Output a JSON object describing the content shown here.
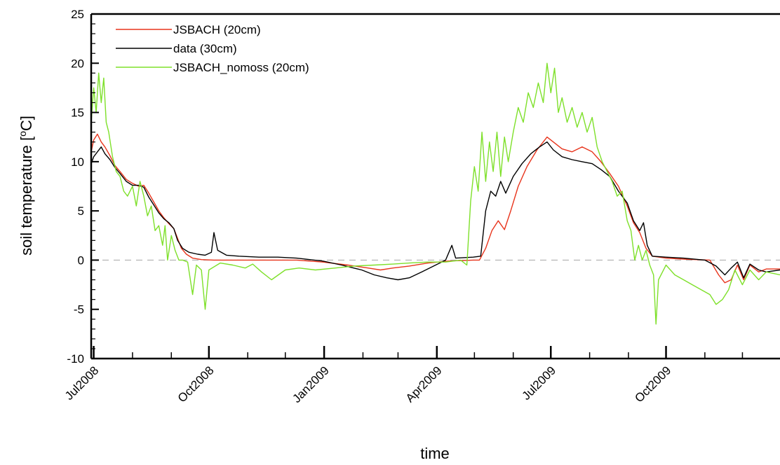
{
  "chart_data": {
    "type": "line",
    "title": "",
    "xlabel": "time",
    "ylabel": "soil temperature [°C]",
    "ylabel_parts": {
      "main": "soil temperature [",
      "super": "o",
      "unit": "C]"
    },
    "ylim": [
      -10,
      25
    ],
    "yticks": [
      -10,
      -5,
      0,
      5,
      10,
      15,
      20,
      25
    ],
    "ytick_labels": [
      "-10",
      "-5",
      "0",
      "5",
      "10",
      "15",
      "20",
      "25"
    ],
    "xlim": [
      "2008-06-29",
      "2009-12-31"
    ],
    "xticks": [
      {
        "date": "2008-07-01",
        "label": "Jul2008"
      },
      {
        "date": "2008-10-01",
        "label": "Oct2008"
      },
      {
        "date": "2009-01-01",
        "label": "Jan2009"
      },
      {
        "date": "2009-04-01",
        "label": "Apr2009"
      },
      {
        "date": "2009-07-01",
        "label": "Jul2009"
      },
      {
        "date": "2009-10-01",
        "label": "Oct2009"
      }
    ],
    "zero_line": {
      "y": 0,
      "style": "dashed",
      "color": "#b0b0b0"
    },
    "legend_position": "top-left",
    "series": [
      {
        "name": "JSBACH (20cm)",
        "color": "#e8341c",
        "points": [
          [
            "2008-06-29",
            11.0
          ],
          [
            "2008-07-01",
            12.2
          ],
          [
            "2008-07-04",
            12.8
          ],
          [
            "2008-07-07",
            12.0
          ],
          [
            "2008-07-10",
            11.5
          ],
          [
            "2008-07-14",
            10.6
          ],
          [
            "2008-07-18",
            9.6
          ],
          [
            "2008-07-22",
            9.0
          ],
          [
            "2008-07-27",
            8.2
          ],
          [
            "2008-08-01",
            7.8
          ],
          [
            "2008-08-06",
            7.5
          ],
          [
            "2008-08-10",
            7.6
          ],
          [
            "2008-08-14",
            6.8
          ],
          [
            "2008-08-18",
            5.9
          ],
          [
            "2008-08-22",
            5.0
          ],
          [
            "2008-08-26",
            4.3
          ],
          [
            "2008-08-30",
            3.7
          ],
          [
            "2008-09-03",
            3.2
          ],
          [
            "2008-09-06",
            2.2
          ],
          [
            "2008-09-09",
            1.2
          ],
          [
            "2008-09-13",
            0.6
          ],
          [
            "2008-09-18",
            0.2
          ],
          [
            "2008-09-25",
            0.05
          ],
          [
            "2008-10-05",
            0.0
          ],
          [
            "2008-10-25",
            0.0
          ],
          [
            "2008-11-15",
            0.0
          ],
          [
            "2008-12-10",
            0.0
          ],
          [
            "2008-12-31",
            -0.2
          ],
          [
            "2009-01-20",
            -0.5
          ],
          [
            "2009-02-05",
            -0.8
          ],
          [
            "2009-02-15",
            -1.0
          ],
          [
            "2009-02-25",
            -0.8
          ],
          [
            "2009-03-10",
            -0.6
          ],
          [
            "2009-03-25",
            -0.3
          ],
          [
            "2009-04-10",
            -0.1
          ],
          [
            "2009-04-30",
            0.0
          ],
          [
            "2009-05-05",
            0.0
          ],
          [
            "2009-05-10",
            1.2
          ],
          [
            "2009-05-15",
            3.0
          ],
          [
            "2009-05-20",
            4.0
          ],
          [
            "2009-05-25",
            3.1
          ],
          [
            "2009-05-30",
            5.0
          ],
          [
            "2009-06-05",
            7.5
          ],
          [
            "2009-06-12",
            9.5
          ],
          [
            "2009-06-20",
            11.2
          ],
          [
            "2009-06-28",
            12.5
          ],
          [
            "2009-07-03",
            12.0
          ],
          [
            "2009-07-10",
            11.3
          ],
          [
            "2009-07-18",
            11.0
          ],
          [
            "2009-07-26",
            11.5
          ],
          [
            "2009-08-03",
            11.0
          ],
          [
            "2009-08-10",
            10.0
          ],
          [
            "2009-08-17",
            8.8
          ],
          [
            "2009-08-24",
            7.5
          ],
          [
            "2009-08-31",
            5.5
          ],
          [
            "2009-09-05",
            3.8
          ],
          [
            "2009-09-10",
            2.8
          ],
          [
            "2009-09-15",
            1.2
          ],
          [
            "2009-09-20",
            0.4
          ],
          [
            "2009-10-01",
            0.2
          ],
          [
            "2009-10-15",
            0.1
          ],
          [
            "2009-11-05",
            0.0
          ],
          [
            "2009-11-12",
            -1.5
          ],
          [
            "2009-11-17",
            -2.3
          ],
          [
            "2009-11-22",
            -2.0
          ],
          [
            "2009-11-27",
            -0.5
          ],
          [
            "2009-12-02",
            -2.0
          ],
          [
            "2009-12-07",
            -0.5
          ],
          [
            "2009-12-14",
            -1.2
          ],
          [
            "2009-12-20",
            -0.9
          ],
          [
            "2009-12-31",
            -0.9
          ]
        ]
      },
      {
        "name": "data (30cm)",
        "color": "#000000",
        "points": [
          [
            "2008-06-29",
            9.8
          ],
          [
            "2008-07-01",
            10.5
          ],
          [
            "2008-07-04",
            11.0
          ],
          [
            "2008-07-07",
            11.5
          ],
          [
            "2008-07-10",
            10.8
          ],
          [
            "2008-07-14",
            10.2
          ],
          [
            "2008-07-18",
            9.4
          ],
          [
            "2008-07-22",
            8.8
          ],
          [
            "2008-07-27",
            8.0
          ],
          [
            "2008-08-01",
            7.6
          ],
          [
            "2008-08-06",
            7.6
          ],
          [
            "2008-08-10",
            7.4
          ],
          [
            "2008-08-14",
            6.4
          ],
          [
            "2008-08-18",
            5.6
          ],
          [
            "2008-08-22",
            4.8
          ],
          [
            "2008-08-26",
            4.2
          ],
          [
            "2008-08-30",
            3.8
          ],
          [
            "2008-09-03",
            3.2
          ],
          [
            "2008-09-06",
            2.0
          ],
          [
            "2008-09-10",
            1.2
          ],
          [
            "2008-09-15",
            0.8
          ],
          [
            "2008-09-22",
            0.6
          ],
          [
            "2008-09-28",
            0.5
          ],
          [
            "2008-10-03",
            0.8
          ],
          [
            "2008-10-05",
            2.8
          ],
          [
            "2008-10-08",
            1.0
          ],
          [
            "2008-10-15",
            0.5
          ],
          [
            "2008-10-25",
            0.4
          ],
          [
            "2008-11-10",
            0.3
          ],
          [
            "2008-11-25",
            0.3
          ],
          [
            "2008-12-10",
            0.2
          ],
          [
            "2008-12-31",
            -0.1
          ],
          [
            "2009-01-15",
            -0.5
          ],
          [
            "2009-01-31",
            -1.0
          ],
          [
            "2009-02-10",
            -1.5
          ],
          [
            "2009-02-20",
            -1.8
          ],
          [
            "2009-03-01",
            -2.0
          ],
          [
            "2009-03-10",
            -1.8
          ],
          [
            "2009-03-20",
            -1.2
          ],
          [
            "2009-03-31",
            -0.5
          ],
          [
            "2009-04-08",
            0.0
          ],
          [
            "2009-04-13",
            1.5
          ],
          [
            "2009-04-16",
            0.2
          ],
          [
            "2009-04-30",
            0.3
          ],
          [
            "2009-05-06",
            0.4
          ],
          [
            "2009-05-10",
            5.0
          ],
          [
            "2009-05-14",
            7.0
          ],
          [
            "2009-05-18",
            6.5
          ],
          [
            "2009-05-22",
            8.0
          ],
          [
            "2009-05-26",
            6.8
          ],
          [
            "2009-06-01",
            8.5
          ],
          [
            "2009-06-08",
            9.8
          ],
          [
            "2009-06-15",
            10.8
          ],
          [
            "2009-06-22",
            11.5
          ],
          [
            "2009-06-28",
            12.0
          ],
          [
            "2009-07-03",
            11.2
          ],
          [
            "2009-07-10",
            10.5
          ],
          [
            "2009-07-18",
            10.2
          ],
          [
            "2009-07-26",
            10.0
          ],
          [
            "2009-08-03",
            9.8
          ],
          [
            "2009-08-10",
            9.2
          ],
          [
            "2009-08-17",
            8.5
          ],
          [
            "2009-08-24",
            7.0
          ],
          [
            "2009-08-31",
            5.8
          ],
          [
            "2009-09-05",
            4.0
          ],
          [
            "2009-09-10",
            3.0
          ],
          [
            "2009-09-13",
            3.8
          ],
          [
            "2009-09-16",
            1.5
          ],
          [
            "2009-09-20",
            0.4
          ],
          [
            "2009-10-01",
            0.3
          ],
          [
            "2009-10-15",
            0.2
          ],
          [
            "2009-11-01",
            0.0
          ],
          [
            "2009-11-10",
            -0.6
          ],
          [
            "2009-11-17",
            -1.5
          ],
          [
            "2009-11-22",
            -0.8
          ],
          [
            "2009-11-27",
            -0.2
          ],
          [
            "2009-12-02",
            -1.8
          ],
          [
            "2009-12-07",
            -0.4
          ],
          [
            "2009-12-14",
            -1.0
          ],
          [
            "2009-12-20",
            -1.2
          ],
          [
            "2009-12-31",
            -1.0
          ]
        ]
      },
      {
        "name": "JSBACH_nomoss (20cm)",
        "color": "#7ee02a",
        "points": [
          [
            "2008-06-29",
            14.0
          ],
          [
            "2008-07-01",
            17.5
          ],
          [
            "2008-07-03",
            15.0
          ],
          [
            "2008-07-05",
            19.0
          ],
          [
            "2008-07-07",
            16.0
          ],
          [
            "2008-07-09",
            18.5
          ],
          [
            "2008-07-11",
            14.0
          ],
          [
            "2008-07-13",
            13.0
          ],
          [
            "2008-07-16",
            10.5
          ],
          [
            "2008-07-19",
            9.0
          ],
          [
            "2008-07-22",
            8.5
          ],
          [
            "2008-07-25",
            7.0
          ],
          [
            "2008-07-28",
            6.5
          ],
          [
            "2008-08-01",
            7.5
          ],
          [
            "2008-08-04",
            5.5
          ],
          [
            "2008-08-07",
            8.0
          ],
          [
            "2008-08-10",
            6.5
          ],
          [
            "2008-08-13",
            4.5
          ],
          [
            "2008-08-16",
            5.5
          ],
          [
            "2008-08-19",
            3.0
          ],
          [
            "2008-08-22",
            3.5
          ],
          [
            "2008-08-25",
            1.5
          ],
          [
            "2008-08-27",
            3.5
          ],
          [
            "2008-08-29",
            0.0
          ],
          [
            "2008-09-01",
            2.5
          ],
          [
            "2008-09-04",
            1.0
          ],
          [
            "2008-09-07",
            0.0
          ],
          [
            "2008-09-10",
            0.0
          ],
          [
            "2008-09-14",
            -0.2
          ],
          [
            "2008-09-18",
            -3.5
          ],
          [
            "2008-09-21",
            -0.5
          ],
          [
            "2008-09-25",
            -1.0
          ],
          [
            "2008-09-28",
            -5.0
          ],
          [
            "2008-10-01",
            -1.0
          ],
          [
            "2008-10-10",
            -0.3
          ],
          [
            "2008-10-20",
            -0.5
          ],
          [
            "2008-10-30",
            -0.8
          ],
          [
            "2008-11-05",
            -0.4
          ],
          [
            "2008-11-12",
            -1.2
          ],
          [
            "2008-11-20",
            -2.0
          ],
          [
            "2008-12-01",
            -1.0
          ],
          [
            "2008-12-12",
            -0.8
          ],
          [
            "2008-12-25",
            -1.0
          ],
          [
            "2009-01-10",
            -0.8
          ],
          [
            "2009-01-25",
            -0.6
          ],
          [
            "2009-02-10",
            -0.5
          ],
          [
            "2009-02-25",
            -0.4
          ],
          [
            "2009-03-10",
            -0.3
          ],
          [
            "2009-03-25",
            -0.2
          ],
          [
            "2009-04-08",
            -0.2
          ],
          [
            "2009-04-20",
            0.0
          ],
          [
            "2009-04-25",
            -0.5
          ],
          [
            "2009-04-28",
            6.0
          ],
          [
            "2009-05-01",
            9.5
          ],
          [
            "2009-05-04",
            7.0
          ],
          [
            "2009-05-07",
            13.0
          ],
          [
            "2009-05-10",
            8.0
          ],
          [
            "2009-05-13",
            12.0
          ],
          [
            "2009-05-16",
            9.0
          ],
          [
            "2009-05-19",
            13.0
          ],
          [
            "2009-05-22",
            8.5
          ],
          [
            "2009-05-25",
            12.5
          ],
          [
            "2009-05-28",
            10.0
          ],
          [
            "2009-06-01",
            13.0
          ],
          [
            "2009-06-05",
            15.5
          ],
          [
            "2009-06-09",
            14.0
          ],
          [
            "2009-06-13",
            17.0
          ],
          [
            "2009-06-17",
            15.5
          ],
          [
            "2009-06-21",
            18.0
          ],
          [
            "2009-06-25",
            16.0
          ],
          [
            "2009-06-28",
            20.0
          ],
          [
            "2009-07-01",
            17.0
          ],
          [
            "2009-07-04",
            19.5
          ],
          [
            "2009-07-07",
            15.0
          ],
          [
            "2009-07-10",
            16.5
          ],
          [
            "2009-07-14",
            14.0
          ],
          [
            "2009-07-18",
            15.5
          ],
          [
            "2009-07-22",
            13.5
          ],
          [
            "2009-07-26",
            15.0
          ],
          [
            "2009-07-30",
            13.0
          ],
          [
            "2009-08-03",
            14.5
          ],
          [
            "2009-08-07",
            11.5
          ],
          [
            "2009-08-11",
            10.0
          ],
          [
            "2009-08-15",
            9.0
          ],
          [
            "2009-08-19",
            8.0
          ],
          [
            "2009-08-23",
            6.5
          ],
          [
            "2009-08-27",
            7.0
          ],
          [
            "2009-08-31",
            4.0
          ],
          [
            "2009-09-03",
            3.0
          ],
          [
            "2009-09-06",
            0.0
          ],
          [
            "2009-09-09",
            1.5
          ],
          [
            "2009-09-12",
            0.0
          ],
          [
            "2009-09-15",
            1.0
          ],
          [
            "2009-09-18",
            -0.5
          ],
          [
            "2009-09-21",
            -1.5
          ],
          [
            "2009-09-23",
            -6.5
          ],
          [
            "2009-09-25",
            -2.0
          ],
          [
            "2009-10-01",
            -0.5
          ],
          [
            "2009-10-08",
            -1.5
          ],
          [
            "2009-10-15",
            -2.0
          ],
          [
            "2009-10-22",
            -2.5
          ],
          [
            "2009-10-29",
            -3.0
          ],
          [
            "2009-11-05",
            -3.5
          ],
          [
            "2009-11-10",
            -4.5
          ],
          [
            "2009-11-15",
            -4.0
          ],
          [
            "2009-11-20",
            -3.0
          ],
          [
            "2009-11-25",
            -1.0
          ],
          [
            "2009-12-01",
            -2.5
          ],
          [
            "2009-12-07",
            -1.0
          ],
          [
            "2009-12-14",
            -2.0
          ],
          [
            "2009-12-20",
            -1.2
          ],
          [
            "2009-12-31",
            -1.5
          ]
        ]
      }
    ]
  }
}
